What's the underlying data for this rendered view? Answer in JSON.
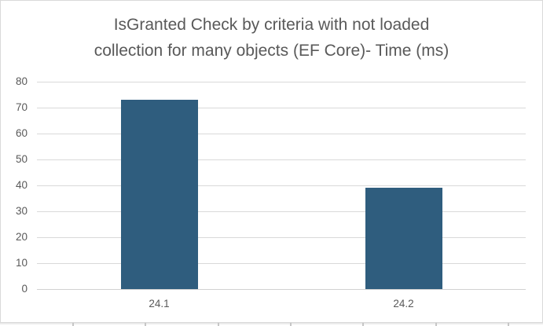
{
  "chart": {
    "title_lines": [
      "IsGranted Check by criteria with not loaded",
      "collection for many objects (EF Core)- Time (ms)"
    ]
  },
  "chart_data": {
    "type": "bar",
    "title": "IsGranted Check by criteria with not loaded collection for many objects (EF Core)- Time (ms)",
    "categories": [
      "24.1",
      "24.2"
    ],
    "values": [
      73,
      39
    ],
    "xlabel": "",
    "ylabel": "",
    "ylim": [
      0,
      80
    ],
    "yticks": [
      0,
      10,
      20,
      30,
      40,
      50,
      60,
      70,
      80
    ],
    "grid": true,
    "legend": false,
    "bar_color": "#2F5D7E",
    "text_color": "#595959",
    "gridline_color": "#D9D9D9",
    "background_color": "#FFFFFF",
    "border_color": "#D9D9D9"
  }
}
